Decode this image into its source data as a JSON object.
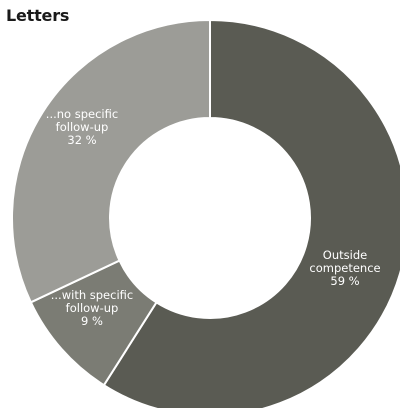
{
  "title": "Letters",
  "colors": {
    "outside": "#5a5b53",
    "with": "#7b7c74",
    "no": "#9c9c97",
    "separator": "#ffffff"
  },
  "chart_data": {
    "type": "pie",
    "variant": "donut",
    "title": "Letters",
    "slices": [
      {
        "label_lines": [
          "Outside",
          "competence"
        ],
        "value_text": "59 %",
        "value": 59
      },
      {
        "label_lines": [
          "...with specific",
          "follow-up"
        ],
        "value_text": "9 %",
        "value": 9
      },
      {
        "label_lines": [
          "...no specific",
          "follow-up"
        ],
        "value_text": "32 %",
        "value": 32
      }
    ]
  }
}
